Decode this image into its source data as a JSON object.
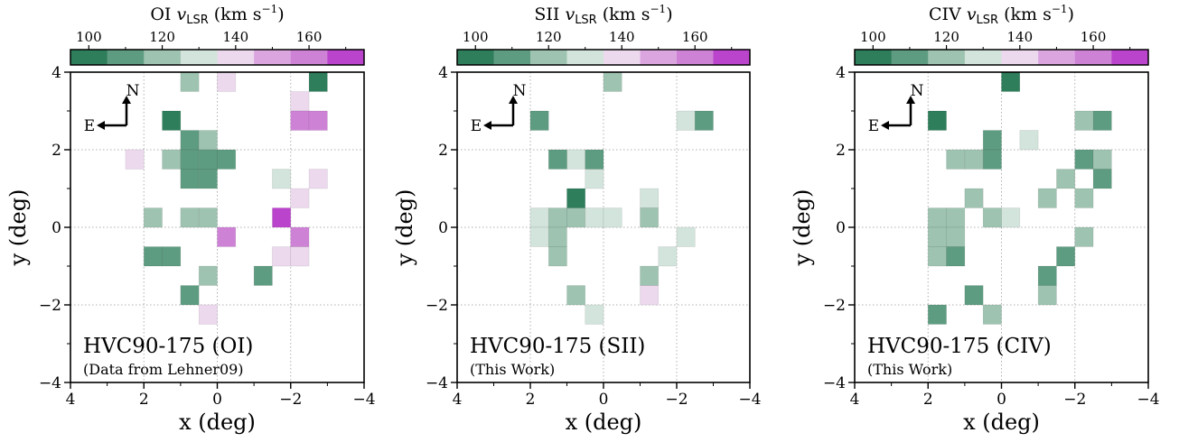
{
  "color_scale": {
    "vmin": 95,
    "vmax": 175,
    "bin_colors": [
      "#2e7d5b",
      "#5e9c81",
      "#9ec3b1",
      "#d2e4db",
      "#ecd9ee",
      "#dba6e0",
      "#ce82d6",
      "#bb44cc"
    ]
  },
  "compass": {
    "north": "N",
    "east": "E"
  },
  "chart_data": [
    {
      "type": "heatmap",
      "title": "",
      "colorbar_title": {
        "prefix": "OI ",
        "v": "v",
        "sub": "LSR",
        "unit": " (km s",
        "exp": "−1",
        "close": ")"
      },
      "colorbar_ticks": [
        "100",
        "120",
        "140",
        "160"
      ],
      "colorbar_tick_values": [
        100,
        120,
        140,
        160
      ],
      "xlabel": "x (deg)",
      "ylabel": "y (deg)",
      "xlim": [
        4,
        -4
      ],
      "ylim": [
        -4,
        4
      ],
      "xticks": [
        4,
        2,
        0,
        -2,
        -4
      ],
      "yticks": [
        -4,
        -2,
        0,
        2,
        4
      ],
      "xtick_labels": [
        "4",
        "2",
        "0",
        "−2",
        "−4"
      ],
      "ytick_labels": [
        "−4",
        "−2",
        "0",
        "2",
        "4"
      ],
      "grid": true,
      "label": "HVC90-175 (OI)",
      "sublabel": "(Data from Lehner09)",
      "cells": [
        {
          "x": 0.75,
          "y": 3.75,
          "v": 115
        },
        {
          "x": -0.25,
          "y": 3.75,
          "v": 138
        },
        {
          "x": -2.75,
          "y": 3.75,
          "v": 100
        },
        {
          "x": -2.25,
          "y": 3.25,
          "v": 140
        },
        {
          "x": 1.25,
          "y": 2.75,
          "v": 100
        },
        {
          "x": -2.25,
          "y": 2.75,
          "v": 155
        },
        {
          "x": -2.75,
          "y": 2.75,
          "v": 162
        },
        {
          "x": 0.75,
          "y": 2.25,
          "v": 108
        },
        {
          "x": 0.25,
          "y": 2.25,
          "v": 115
        },
        {
          "x": 2.25,
          "y": 1.75,
          "v": 140
        },
        {
          "x": 1.25,
          "y": 1.75,
          "v": 115
        },
        {
          "x": 0.75,
          "y": 1.75,
          "v": 108
        },
        {
          "x": 0.25,
          "y": 1.75,
          "v": 108
        },
        {
          "x": -0.25,
          "y": 1.75,
          "v": 108
        },
        {
          "x": 0.75,
          "y": 1.25,
          "v": 108
        },
        {
          "x": 0.25,
          "y": 1.25,
          "v": 108
        },
        {
          "x": -1.75,
          "y": 1.25,
          "v": 128
        },
        {
          "x": -2.75,
          "y": 1.25,
          "v": 140
        },
        {
          "x": -2.25,
          "y": 0.75,
          "v": 140
        },
        {
          "x": 1.75,
          "y": 0.25,
          "v": 115
        },
        {
          "x": 0.75,
          "y": 0.25,
          "v": 115
        },
        {
          "x": 0.25,
          "y": 0.25,
          "v": 115
        },
        {
          "x": -1.75,
          "y": 0.25,
          "v": 172
        },
        {
          "x": -0.25,
          "y": -0.25,
          "v": 155
        },
        {
          "x": -2.25,
          "y": -0.25,
          "v": 155
        },
        {
          "x": 1.75,
          "y": -0.75,
          "v": 108
        },
        {
          "x": 1.25,
          "y": -0.75,
          "v": 108
        },
        {
          "x": -1.75,
          "y": -0.75,
          "v": 140
        },
        {
          "x": -2.25,
          "y": -0.75,
          "v": 140
        },
        {
          "x": -1.25,
          "y": -1.25,
          "v": 108
        },
        {
          "x": 0.25,
          "y": -1.25,
          "v": 115
        },
        {
          "x": 0.75,
          "y": -1.75,
          "v": 108
        },
        {
          "x": 0.25,
          "y": -2.25,
          "v": 140
        }
      ]
    },
    {
      "type": "heatmap",
      "title": "",
      "colorbar_title": {
        "prefix": "SII ",
        "v": "v",
        "sub": "LSR",
        "unit": " (km s",
        "exp": "−1",
        "close": ")"
      },
      "colorbar_ticks": [
        "100",
        "120",
        "140",
        "160"
      ],
      "colorbar_tick_values": [
        100,
        120,
        140,
        160
      ],
      "xlabel": "x (deg)",
      "ylabel": "y (deg)",
      "xlim": [
        4,
        -4
      ],
      "ylim": [
        -4,
        4
      ],
      "xticks": [
        4,
        2,
        0,
        -2,
        -4
      ],
      "yticks": [
        -4,
        -2,
        0,
        2,
        4
      ],
      "xtick_labels": [
        "4",
        "2",
        "0",
        "−2",
        "−4"
      ],
      "ytick_labels": [
        "−4",
        "−2",
        "0",
        "2",
        "4"
      ],
      "grid": true,
      "label": "HVC90-175 (SII)",
      "sublabel": "(This Work)",
      "cells": [
        {
          "x": -0.25,
          "y": 3.75,
          "v": 115
        },
        {
          "x": 1.75,
          "y": 2.75,
          "v": 108
        },
        {
          "x": -2.25,
          "y": 2.75,
          "v": 128
        },
        {
          "x": -2.75,
          "y": 2.75,
          "v": 108
        },
        {
          "x": 1.25,
          "y": 1.75,
          "v": 108
        },
        {
          "x": 0.75,
          "y": 1.75,
          "v": 128
        },
        {
          "x": 0.25,
          "y": 1.75,
          "v": 108
        },
        {
          "x": 0.25,
          "y": 1.25,
          "v": 128
        },
        {
          "x": 0.75,
          "y": 0.75,
          "v": 100
        },
        {
          "x": -1.25,
          "y": 0.75,
          "v": 128
        },
        {
          "x": 1.75,
          "y": 0.25,
          "v": 128
        },
        {
          "x": 1.25,
          "y": 0.25,
          "v": 115
        },
        {
          "x": 0.75,
          "y": 0.25,
          "v": 115
        },
        {
          "x": 0.25,
          "y": 0.25,
          "v": 128
        },
        {
          "x": -0.25,
          "y": 0.25,
          "v": 128
        },
        {
          "x": -1.25,
          "y": 0.25,
          "v": 115
        },
        {
          "x": 1.75,
          "y": -0.25,
          "v": 128
        },
        {
          "x": 1.25,
          "y": -0.25,
          "v": 115
        },
        {
          "x": -2.25,
          "y": -0.25,
          "v": 128
        },
        {
          "x": 1.25,
          "y": -0.75,
          "v": 115
        },
        {
          "x": -1.75,
          "y": -0.75,
          "v": 128
        },
        {
          "x": -1.25,
          "y": -1.25,
          "v": 115
        },
        {
          "x": 0.75,
          "y": -1.75,
          "v": 115
        },
        {
          "x": -1.25,
          "y": -1.75,
          "v": 140
        },
        {
          "x": 0.25,
          "y": -2.25,
          "v": 128
        }
      ]
    },
    {
      "type": "heatmap",
      "title": "",
      "colorbar_title": {
        "prefix": "CIV ",
        "v": "v",
        "sub": "LSR",
        "unit": " (km s",
        "exp": "−1",
        "close": ")"
      },
      "colorbar_ticks": [
        "100",
        "120",
        "140",
        "160"
      ],
      "colorbar_tick_values": [
        100,
        120,
        140,
        160
      ],
      "xlabel": "x (deg)",
      "ylabel": "y (deg)",
      "xlim": [
        4,
        -4
      ],
      "ylim": [
        -4,
        4
      ],
      "xticks": [
        4,
        2,
        0,
        -2,
        -4
      ],
      "yticks": [
        -4,
        -2,
        0,
        2,
        4
      ],
      "xtick_labels": [
        "4",
        "2",
        "0",
        "−2",
        "−4"
      ],
      "ytick_labels": [
        "−4",
        "−2",
        "0",
        "2",
        "4"
      ],
      "grid": true,
      "label": "HVC90-175 (CIV)",
      "sublabel": "(This Work)",
      "cells": [
        {
          "x": -0.25,
          "y": 3.75,
          "v": 100
        },
        {
          "x": 1.75,
          "y": 2.75,
          "v": 100
        },
        {
          "x": -2.75,
          "y": 2.75,
          "v": 108
        },
        {
          "x": -2.25,
          "y": 2.75,
          "v": 115
        },
        {
          "x": 0.25,
          "y": 2.25,
          "v": 108
        },
        {
          "x": -0.75,
          "y": 2.25,
          "v": 128
        },
        {
          "x": 1.25,
          "y": 1.75,
          "v": 115
        },
        {
          "x": 0.75,
          "y": 1.75,
          "v": 115
        },
        {
          "x": 0.25,
          "y": 1.75,
          "v": 108
        },
        {
          "x": -2.25,
          "y": 1.75,
          "v": 108
        },
        {
          "x": -2.75,
          "y": 1.75,
          "v": 115
        },
        {
          "x": -1.75,
          "y": 1.25,
          "v": 115
        },
        {
          "x": -2.75,
          "y": 1.25,
          "v": 108
        },
        {
          "x": -1.25,
          "y": 0.75,
          "v": 115
        },
        {
          "x": -2.25,
          "y": 0.75,
          "v": 115
        },
        {
          "x": 0.75,
          "y": 0.75,
          "v": 115
        },
        {
          "x": 1.75,
          "y": 0.25,
          "v": 115
        },
        {
          "x": 1.25,
          "y": 0.25,
          "v": 115
        },
        {
          "x": 0.25,
          "y": 0.25,
          "v": 115
        },
        {
          "x": -0.25,
          "y": 0.25,
          "v": 128
        },
        {
          "x": 1.75,
          "y": -0.25,
          "v": 115
        },
        {
          "x": 1.25,
          "y": -0.25,
          "v": 115
        },
        {
          "x": -2.25,
          "y": -0.25,
          "v": 115
        },
        {
          "x": 1.75,
          "y": -0.75,
          "v": 115
        },
        {
          "x": 1.25,
          "y": -0.75,
          "v": 108
        },
        {
          "x": -1.75,
          "y": -0.75,
          "v": 108
        },
        {
          "x": -1.25,
          "y": -1.25,
          "v": 108
        },
        {
          "x": -1.25,
          "y": -1.75,
          "v": 115
        },
        {
          "x": 0.75,
          "y": -1.75,
          "v": 108
        },
        {
          "x": 1.75,
          "y": -2.25,
          "v": 108
        },
        {
          "x": 0.25,
          "y": -2.25,
          "v": 115
        }
      ]
    }
  ]
}
